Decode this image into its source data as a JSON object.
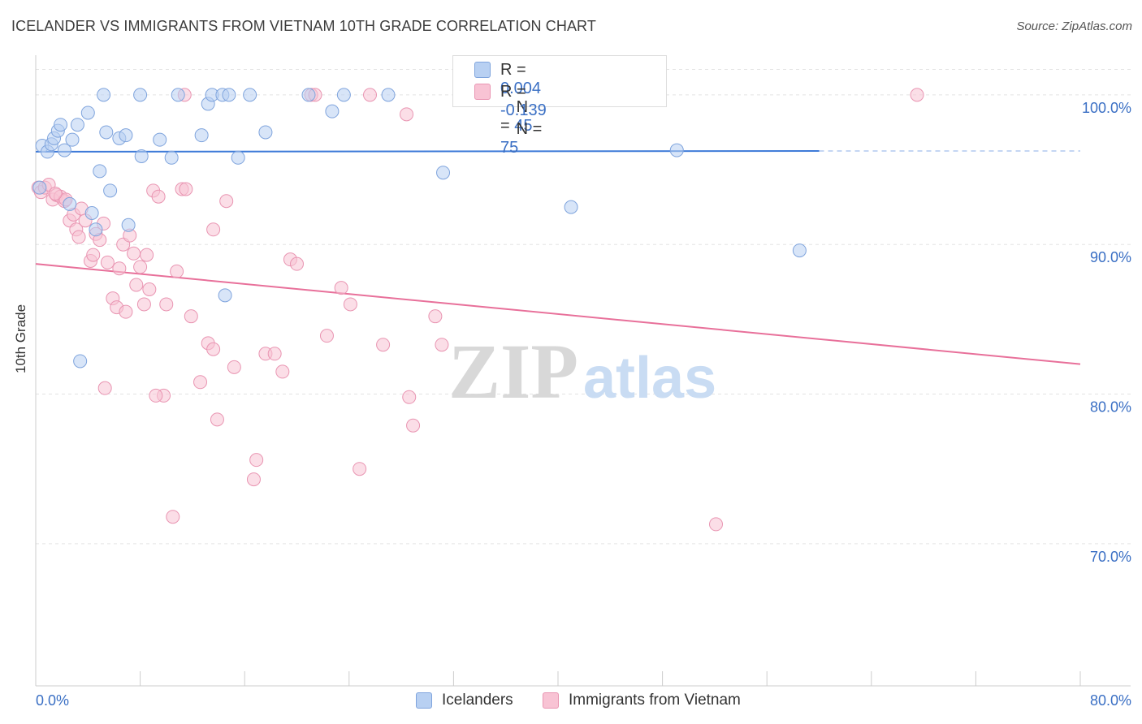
{
  "title": "ICELANDER VS IMMIGRANTS FROM VIETNAM 10TH GRADE CORRELATION CHART",
  "source": "Source: ZipAtlas.com",
  "watermark": {
    "zip": "ZIP",
    "atlas": "atlas"
  },
  "legend": {
    "rows": [
      {
        "r_label": "R = ",
        "r_value": "0.004",
        "n_label": "N = ",
        "n_value": "45"
      },
      {
        "r_label": "R = ",
        "r_value": "-0.139",
        "n_label": "N = ",
        "n_value": "75"
      }
    ]
  },
  "bottom_legend": [
    {
      "label": "Icelanders"
    },
    {
      "label": "Immigrants from Vietnam"
    }
  ],
  "colors": {
    "blue_fill": "#b8d0f2",
    "blue_stroke": "#7fa4dd",
    "blue_line": "#3d7ad8",
    "pink_fill": "#f8c3d4",
    "pink_stroke": "#e995b2",
    "pink_line": "#e8709a",
    "axis_text": "#3a6fc4",
    "grid": "#e3e3e3"
  },
  "chart_data": {
    "type": "scatter",
    "title": "ICELANDER VS IMMIGRANTS FROM VIETNAM 10TH GRADE CORRELATION CHART",
    "xlabel": "",
    "ylabel": "10th Grade",
    "xlim": [
      0,
      80
    ],
    "ylim": [
      60.5,
      102
    ],
    "x_tick_labels": [
      "0.0%",
      "80.0%"
    ],
    "y_ticks": [
      70,
      80,
      90,
      100
    ],
    "y_tick_labels": [
      "70.0%",
      "80.0%",
      "90.0%",
      "100.0%"
    ],
    "grid": true,
    "legend_position": "top-center",
    "series": [
      {
        "name": "Icelanders",
        "r": 0.004,
        "n": 45,
        "trend": {
          "x": [
            0,
            60
          ],
          "y": [
            96.2,
            96.25
          ],
          "dashed_to": 80
        },
        "points": [
          [
            0.5,
            96.6
          ],
          [
            0.9,
            96.2
          ],
          [
            1.2,
            96.7
          ],
          [
            1.4,
            97.1
          ],
          [
            1.7,
            97.6
          ],
          [
            1.9,
            98.0
          ],
          [
            2.2,
            96.3
          ],
          [
            2.8,
            97.0
          ],
          [
            3.2,
            98.0
          ],
          [
            4.0,
            98.8
          ],
          [
            2.6,
            92.7
          ],
          [
            4.3,
            92.1
          ],
          [
            4.6,
            91.0
          ],
          [
            4.9,
            94.9
          ],
          [
            5.2,
            100.0
          ],
          [
            5.4,
            97.5
          ],
          [
            5.7,
            93.6
          ],
          [
            6.4,
            97.1
          ],
          [
            6.9,
            97.3
          ],
          [
            7.1,
            91.3
          ],
          [
            8.0,
            100.0
          ],
          [
            8.1,
            95.9
          ],
          [
            9.5,
            97.0
          ],
          [
            10.4,
            95.8
          ],
          [
            10.9,
            100.0
          ],
          [
            12.7,
            97.3
          ],
          [
            13.2,
            99.4
          ],
          [
            13.5,
            100.0
          ],
          [
            14.3,
            100.0
          ],
          [
            14.8,
            100.0
          ],
          [
            15.5,
            95.8
          ],
          [
            16.4,
            100.0
          ],
          [
            17.6,
            97.5
          ],
          [
            20.9,
            100.0
          ],
          [
            22.7,
            98.9
          ],
          [
            23.6,
            100.0
          ],
          [
            27.0,
            100.0
          ],
          [
            31.2,
            94.8
          ],
          [
            34.2,
            100.0
          ],
          [
            41.0,
            92.5
          ],
          [
            49.1,
            96.3
          ],
          [
            58.5,
            89.6
          ],
          [
            14.5,
            86.6
          ],
          [
            3.4,
            82.2
          ],
          [
            0.3,
            93.8
          ]
        ]
      },
      {
        "name": "Immigrants from Vietnam",
        "r": -0.139,
        "n": 75,
        "trend": {
          "x": [
            0,
            80
          ],
          "y": [
            88.7,
            82.0
          ]
        },
        "points": [
          [
            0.2,
            93.8
          ],
          [
            0.4,
            93.5
          ],
          [
            0.7,
            93.8
          ],
          [
            1.0,
            94.0
          ],
          [
            1.3,
            93.0
          ],
          [
            1.6,
            93.3
          ],
          [
            1.9,
            93.2
          ],
          [
            2.2,
            92.9
          ],
          [
            2.6,
            91.6
          ],
          [
            2.9,
            92.0
          ],
          [
            3.1,
            91.0
          ],
          [
            3.3,
            90.5
          ],
          [
            3.5,
            92.4
          ],
          [
            3.8,
            91.6
          ],
          [
            4.2,
            88.9
          ],
          [
            4.4,
            89.3
          ],
          [
            4.6,
            90.7
          ],
          [
            4.9,
            90.3
          ],
          [
            5.2,
            91.4
          ],
          [
            5.5,
            88.8
          ],
          [
            5.9,
            86.4
          ],
          [
            6.2,
            85.8
          ],
          [
            6.4,
            88.4
          ],
          [
            6.7,
            90.0
          ],
          [
            6.9,
            85.5
          ],
          [
            7.2,
            90.6
          ],
          [
            7.5,
            89.4
          ],
          [
            7.7,
            87.3
          ],
          [
            8.0,
            88.5
          ],
          [
            8.3,
            86.0
          ],
          [
            8.5,
            89.3
          ],
          [
            8.7,
            87.0
          ],
          [
            9.0,
            93.6
          ],
          [
            9.4,
            93.2
          ],
          [
            9.8,
            79.9
          ],
          [
            10.0,
            86.0
          ],
          [
            10.5,
            71.8
          ],
          [
            10.8,
            88.2
          ],
          [
            11.2,
            93.7
          ],
          [
            11.5,
            93.7
          ],
          [
            11.9,
            85.2
          ],
          [
            12.6,
            80.8
          ],
          [
            13.2,
            83.4
          ],
          [
            13.6,
            83.0
          ],
          [
            13.9,
            78.3
          ],
          [
            14.6,
            92.9
          ],
          [
            15.2,
            81.8
          ],
          [
            16.7,
            74.3
          ],
          [
            16.9,
            75.6
          ],
          [
            17.6,
            82.7
          ],
          [
            18.3,
            82.7
          ],
          [
            18.9,
            81.5
          ],
          [
            19.5,
            89.0
          ],
          [
            20.0,
            88.7
          ],
          [
            21.1,
            100.0
          ],
          [
            21.4,
            100.0
          ],
          [
            22.3,
            83.9
          ],
          [
            23.4,
            87.1
          ],
          [
            24.1,
            86.0
          ],
          [
            24.8,
            75.0
          ],
          [
            25.6,
            100.0
          ],
          [
            26.6,
            83.3
          ],
          [
            28.4,
            98.7
          ],
          [
            28.6,
            79.8
          ],
          [
            28.9,
            77.9
          ],
          [
            30.6,
            85.2
          ],
          [
            31.1,
            83.3
          ],
          [
            52.1,
            71.3
          ],
          [
            67.5,
            100.0
          ],
          [
            11.4,
            100.0
          ],
          [
            5.3,
            80.4
          ],
          [
            9.2,
            79.9
          ],
          [
            2.3,
            93.0
          ],
          [
            13.6,
            91.0
          ],
          [
            1.5,
            93.4
          ]
        ]
      }
    ]
  }
}
